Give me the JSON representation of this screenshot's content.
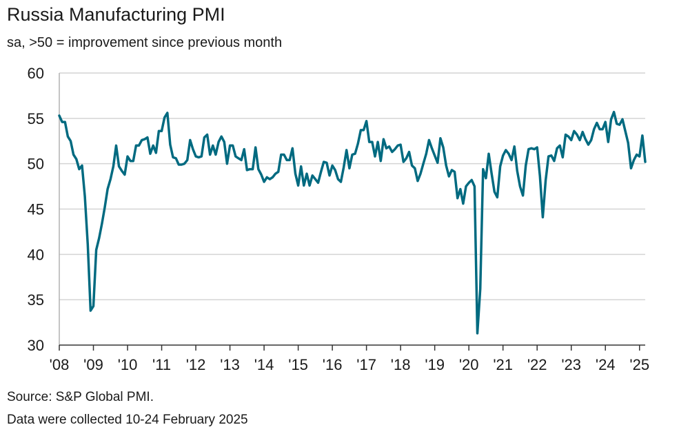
{
  "header": {
    "title": "Russia Manufacturing PMI",
    "subtitle": "sa, >50 = improvement since previous month"
  },
  "footer": {
    "source": "Source: S&P Global PMI.",
    "note": "Data were collected 10-24 February 2025"
  },
  "colors": {
    "line": "#006a80",
    "grid": "#d4d4d4",
    "axis": "#333333",
    "text": "#1a1a1a"
  },
  "chart_data": {
    "type": "line",
    "title": "Russia Manufacturing PMI",
    "subtitle": "sa, >50 = improvement since previous month",
    "xlabel": "",
    "ylabel": "",
    "ylim": [
      30,
      60
    ],
    "yticks": [
      30,
      35,
      40,
      45,
      50,
      55,
      60
    ],
    "xlim": [
      2008.0,
      2025.167
    ],
    "x_ticks": [
      {
        "pos": 2008,
        "label": "'08"
      },
      {
        "pos": 2009,
        "label": "'09"
      },
      {
        "pos": 2010,
        "label": "'10"
      },
      {
        "pos": 2011,
        "label": "'11"
      },
      {
        "pos": 2012,
        "label": "'12"
      },
      {
        "pos": 2013,
        "label": "'13"
      },
      {
        "pos": 2014,
        "label": "'14"
      },
      {
        "pos": 2015,
        "label": "'15"
      },
      {
        "pos": 2016,
        "label": "'16"
      },
      {
        "pos": 2017,
        "label": "'17"
      },
      {
        "pos": 2018,
        "label": "'18"
      },
      {
        "pos": 2019,
        "label": "'19"
      },
      {
        "pos": 2020,
        "label": "'20"
      },
      {
        "pos": 2021,
        "label": "'21"
      },
      {
        "pos": 2022,
        "label": "'22"
      },
      {
        "pos": 2023,
        "label": "'23"
      },
      {
        "pos": 2024,
        "label": "'24"
      },
      {
        "pos": 2025,
        "label": "'25"
      }
    ],
    "grid": true,
    "series": [
      {
        "name": "Russia Manufacturing PMI",
        "start": "2008-01",
        "frequency": "monthly",
        "values": [
          55.3,
          54.6,
          54.6,
          53.0,
          52.5,
          51.0,
          50.5,
          49.4,
          49.8,
          46.4,
          41.1,
          33.8,
          34.3,
          40.5,
          41.8,
          43.4,
          45.2,
          47.2,
          48.3,
          49.7,
          52.0,
          49.7,
          49.2,
          48.8,
          50.8,
          50.3,
          50.3,
          52.0,
          52.0,
          52.6,
          52.7,
          52.9,
          51.1,
          52.0,
          51.2,
          53.6,
          53.6,
          55.1,
          55.6,
          52.1,
          50.7,
          50.6,
          49.9,
          49.9,
          50.0,
          50.4,
          52.6,
          51.6,
          50.8,
          50.7,
          50.8,
          52.9,
          53.2,
          51.0,
          52.0,
          51.0,
          52.4,
          53.0,
          52.4,
          50.0,
          52.0,
          52.0,
          50.8,
          50.6,
          50.4,
          51.6,
          49.3,
          49.4,
          49.4,
          51.8,
          49.4,
          48.8,
          48.0,
          48.5,
          48.3,
          48.5,
          48.9,
          49.1,
          51.0,
          51.0,
          50.4,
          50.4,
          51.7,
          48.9,
          47.6,
          49.7,
          47.6,
          48.9,
          47.6,
          48.7,
          48.3,
          47.9,
          49.1,
          50.2,
          50.1,
          48.7,
          49.8,
          49.3,
          48.3,
          48.0,
          49.6,
          51.5,
          49.5,
          51.0,
          51.1,
          52.2,
          53.7,
          53.7,
          54.7,
          52.4,
          52.4,
          50.8,
          52.4,
          50.3,
          52.7,
          51.7,
          51.9,
          51.3,
          51.6,
          52.0,
          52.1,
          50.2,
          50.6,
          51.3,
          49.8,
          49.5,
          48.1,
          48.9,
          50.0,
          51.1,
          52.6,
          51.7,
          50.9,
          50.1,
          52.8,
          51.8,
          49.8,
          48.6,
          49.3,
          49.1,
          46.2,
          47.2,
          45.6,
          47.5,
          47.9,
          48.2,
          47.5,
          31.3,
          36.2,
          49.4,
          48.4,
          51.1,
          48.9,
          46.9,
          46.3,
          49.7,
          50.9,
          51.5,
          51.1,
          50.4,
          51.9,
          49.2,
          47.5,
          46.5,
          49.8,
          51.6,
          51.7,
          51.6,
          51.8,
          48.6,
          44.1,
          48.2,
          50.8,
          50.9,
          50.3,
          51.7,
          52.0,
          50.7,
          53.2,
          53.0,
          52.6,
          53.6,
          53.2,
          52.6,
          53.5,
          52.7,
          52.1,
          52.6,
          53.8,
          54.5,
          53.8,
          53.8,
          54.6,
          52.4,
          54.9,
          55.7,
          54.4,
          54.3,
          54.9,
          53.6,
          52.3,
          49.5,
          50.4,
          51.0,
          50.8,
          53.1,
          50.2
        ]
      }
    ]
  }
}
